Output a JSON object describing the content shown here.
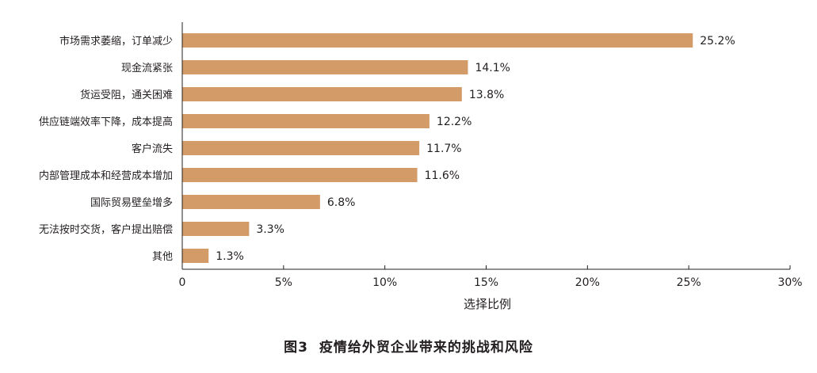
{
  "chart_data": {
    "type": "bar",
    "orientation": "horizontal",
    "categories": [
      "市场需求萎缩，订单减少",
      "现金流紧张",
      "货运受阻，通关困难",
      "供应链端效率下降，成本提高",
      "客户流失",
      "内部管理成本和经营成本增加",
      "国际贸易壁垒增多",
      "无法按时交货，客户提出赔偿",
      "其他"
    ],
    "values": [
      25.2,
      14.1,
      13.8,
      12.2,
      11.7,
      11.6,
      6.8,
      3.3,
      1.3
    ],
    "value_labels": [
      "25.2%",
      "14.1%",
      "13.8%",
      "12.2%",
      "11.7%",
      "11.6%",
      "6.8%",
      "3.3%",
      "1.3%"
    ],
    "xlim": [
      0,
      30
    ],
    "xticks": [
      0,
      5,
      10,
      15,
      20,
      25,
      30
    ],
    "xtick_labels": [
      "0",
      "5%",
      "10%",
      "15%",
      "20%",
      "25%",
      "30%"
    ],
    "xlabel": "选择比例",
    "ylabel": "",
    "grid": false,
    "bar_color": "#d29b68"
  },
  "caption": {
    "figure_number": "图3",
    "title": "疫情给外贸企业带来的挑战和风险"
  }
}
